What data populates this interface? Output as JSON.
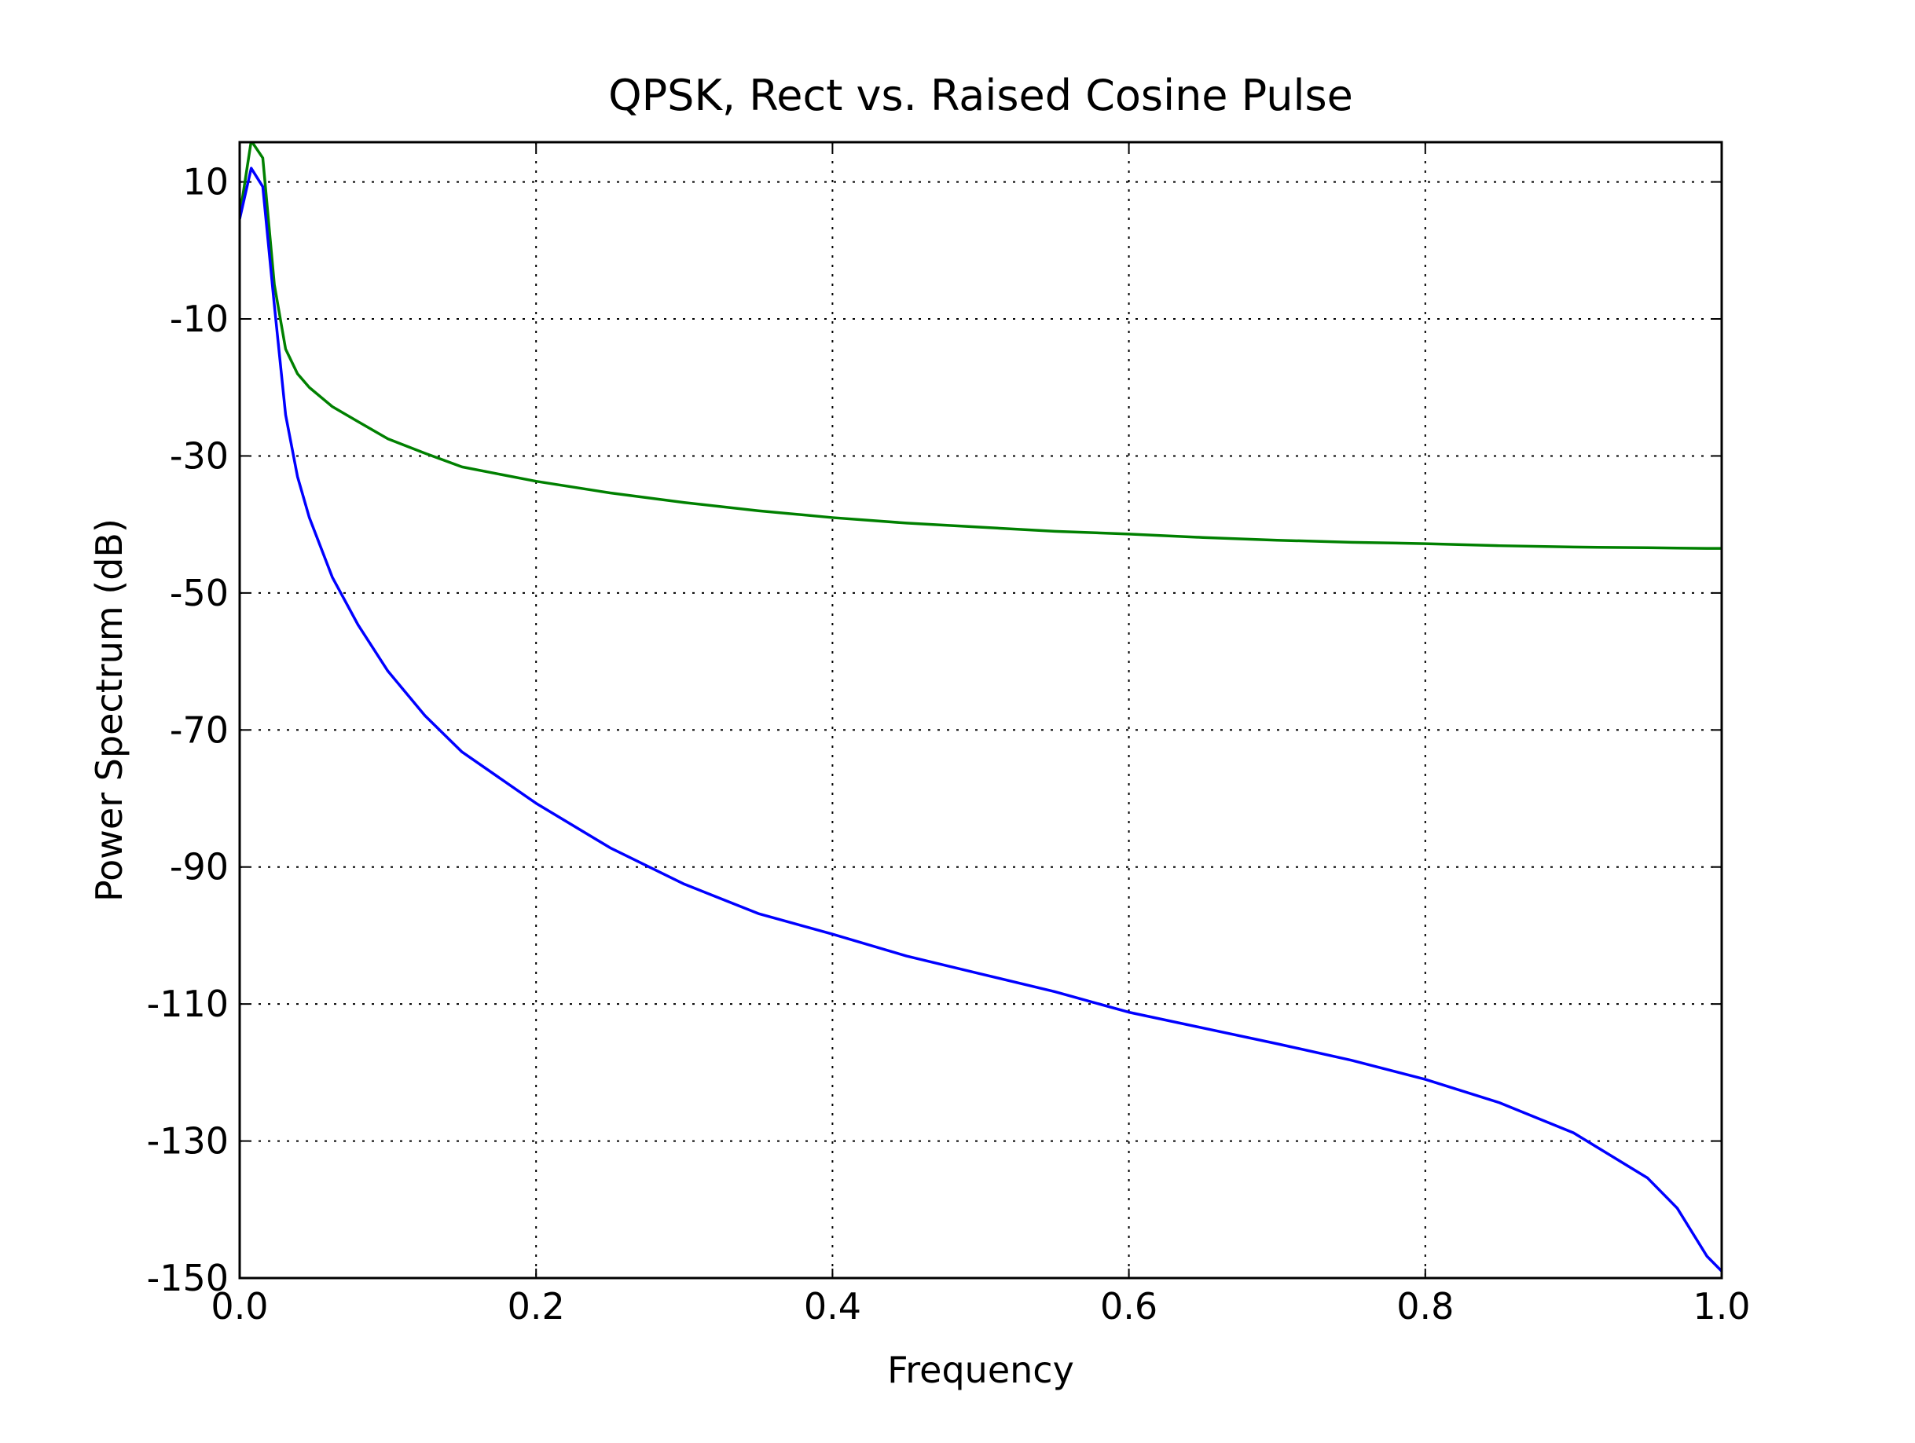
{
  "chart_data": {
    "type": "line",
    "title": "QPSK, Rect vs. Raised Cosine Pulse",
    "xlabel": "Frequency",
    "ylabel": "Power Spectrum (dB)",
    "x": [
      0,
      0.0078,
      0.0156,
      0.0234,
      0.031,
      0.039,
      0.047,
      0.0625,
      0.08,
      0.1,
      0.125,
      0.15,
      0.2,
      0.25,
      0.3,
      0.35,
      0.4,
      0.45,
      0.5,
      0.55,
      0.6,
      0.65,
      0.7,
      0.75,
      0.8,
      0.85,
      0.9,
      0.95,
      0.97,
      0.99,
      1.0
    ],
    "series": [
      {
        "color": "#008000",
        "values": [
          5,
          16,
          13.5,
          -5,
          -14.4,
          -18,
          -20,
          -22.8,
          -25,
          -27.5,
          -29.6,
          -31.6,
          -33.7,
          -35.4,
          -36.8,
          -38,
          -39,
          -39.8,
          -40.4,
          -41,
          -41.4,
          -41.9,
          -42.3,
          -42.6,
          -42.8,
          -43.1,
          -43.3,
          -43.4,
          -43.45,
          -43.5,
          -43.5
        ]
      },
      {
        "color": "#0000ff",
        "values": [
          4.6,
          12,
          9.3,
          -8,
          -24,
          -33,
          -39,
          -47.7,
          -54.7,
          -61.4,
          -67.9,
          -73.2,
          -80.7,
          -87.2,
          -92.5,
          -96.8,
          -99.8,
          -103,
          -105.6,
          -108.2,
          -111.2,
          -113.5,
          -115.8,
          -118.2,
          -121,
          -124.4,
          -128.8,
          -135.4,
          -139.8,
          -146.8,
          -149
        ]
      }
    ],
    "xlim": [
      0,
      1.0
    ],
    "xticks": [
      {
        "value": 0,
        "label": "0.0"
      },
      0.2,
      0.4,
      0.6,
      0.8,
      {
        "value": 1,
        "label": "1.0"
      }
    ],
    "ylim": [
      -150,
      15.8
    ],
    "yticks": [
      -150,
      -130,
      -110,
      -90,
      -70,
      -50,
      -30,
      -10,
      10
    ],
    "grid": true
  }
}
